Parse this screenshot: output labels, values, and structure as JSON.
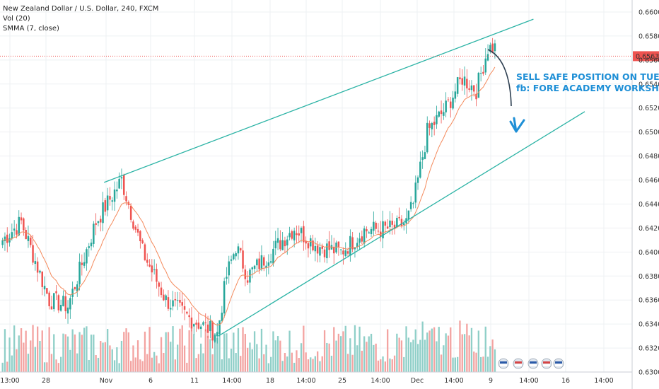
{
  "legend": {
    "symbol": "New Zealand Dollar / U.S. Dollar, 240, FXCM",
    "volume": "Vol (20)",
    "smma": "SMMA (7, close)"
  },
  "annotation": {
    "line1": "SELL SAFE POSITION ON TUES",
    "line2": "fb: FORE ACADEMY WORKSHOP"
  },
  "colors": {
    "up": "#26a69a",
    "down": "#ef5350",
    "up_volume": "#8fcfc8",
    "down_volume": "#f3a3a1",
    "trendline": "#2bb3a5",
    "smma": "#f48a5c",
    "price_line": "#ef5350",
    "price_label_bg": "#ef5350",
    "annotation": "#1e8fd6",
    "arrow": "#2c3e50"
  },
  "chart_data": {
    "type": "candlestick",
    "y_axis": {
      "min": 0.63,
      "max": 0.661,
      "ticks": [
        "0.66000",
        "0.65800",
        "0.65600",
        "0.65400",
        "0.65200",
        "0.65000",
        "0.64800",
        "0.64600",
        "0.64400",
        "0.64200",
        "0.64000",
        "0.63800",
        "0.63600",
        "0.63400",
        "0.63200",
        "0.63000"
      ]
    },
    "current_price": "0.65632",
    "x_ticks": [
      "13:00",
      "28",
      "Nov",
      "6",
      "11",
      "14:00",
      "18",
      "14:00",
      "25",
      "14:00",
      "Dec",
      "14:00",
      "9",
      "14:00",
      "16",
      "14:00"
    ],
    "price_path_keypoints": [
      {
        "bar": 0,
        "price": 0.641
      },
      {
        "bar": 8,
        "price": 0.6425
      },
      {
        "bar": 20,
        "price": 0.636
      },
      {
        "bar": 28,
        "price": 0.6355
      },
      {
        "bar": 40,
        "price": 0.6425
      },
      {
        "bar": 51,
        "price": 0.646
      },
      {
        "bar": 60,
        "price": 0.64
      },
      {
        "bar": 70,
        "price": 0.636
      },
      {
        "bar": 80,
        "price": 0.6345
      },
      {
        "bar": 92,
        "price": 0.6332
      },
      {
        "bar": 96,
        "price": 0.638
      },
      {
        "bar": 100,
        "price": 0.6405
      },
      {
        "bar": 105,
        "price": 0.638
      },
      {
        "bar": 115,
        "price": 0.64
      },
      {
        "bar": 125,
        "price": 0.642
      },
      {
        "bar": 135,
        "price": 0.6405
      },
      {
        "bar": 145,
        "price": 0.64
      },
      {
        "bar": 155,
        "price": 0.6418
      },
      {
        "bar": 168,
        "price": 0.642
      },
      {
        "bar": 173,
        "price": 0.6425
      },
      {
        "bar": 176,
        "price": 0.644
      },
      {
        "bar": 182,
        "price": 0.65
      },
      {
        "bar": 190,
        "price": 0.652
      },
      {
        "bar": 197,
        "price": 0.6545
      },
      {
        "bar": 203,
        "price": 0.6535
      },
      {
        "bar": 208,
        "price": 0.657
      }
    ],
    "trendlines": [
      {
        "name": "upper",
        "from": {
          "bar": 44,
          "price": 0.6458
        },
        "to": {
          "bar": 228,
          "price": 0.6594
        }
      },
      {
        "name": "lower",
        "from": {
          "bar": 93,
          "price": 0.633
        },
        "to": {
          "bar": 250,
          "price": 0.6517
        }
      }
    ]
  }
}
